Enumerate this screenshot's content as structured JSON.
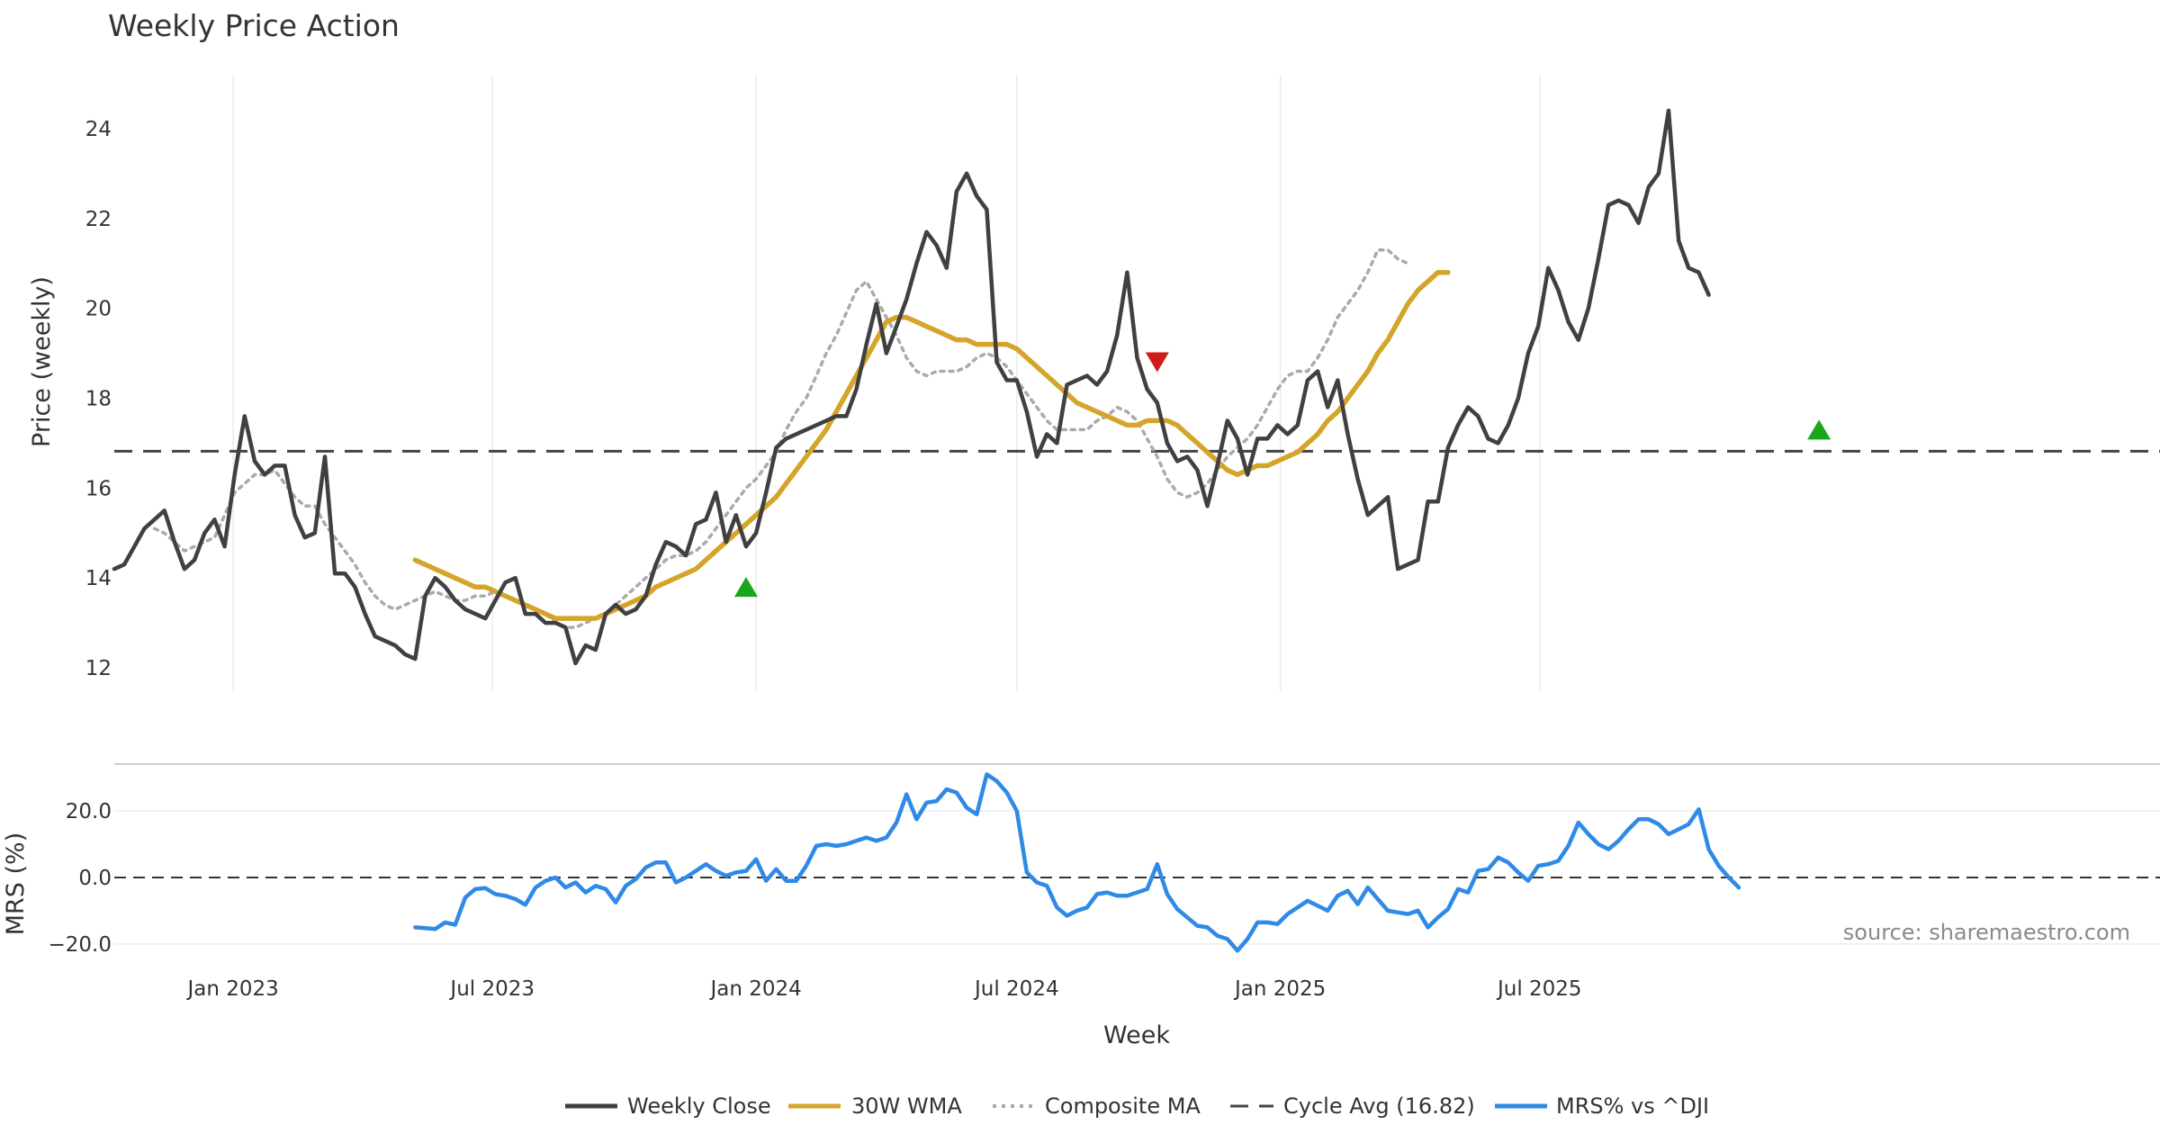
{
  "chart_data": {
    "type": "line",
    "title": "Weekly Price Action",
    "xlabel": "Week",
    "source": "source: sharemaestro.com",
    "x_tick_labels": [
      "Jan 2023",
      "Jul 2023",
      "Jan 2024",
      "Jul 2024",
      "Jan 2025",
      "Jul 2025"
    ],
    "x_range": [
      -12,
      192
    ],
    "price_panel": {
      "ylabel": "Price (weekly)",
      "ylim": [
        11.5,
        25.2
      ],
      "yticks": [
        12,
        14,
        16,
        18,
        20,
        22,
        24
      ],
      "ytick_labels": [
        "12",
        "14",
        "16",
        "18",
        "20",
        "22",
        "24"
      ],
      "grid": true
    },
    "mrs_panel": {
      "ylabel": "MRS (%)",
      "ylim": [
        -23,
        33
      ],
      "yticks": [
        -20,
        0,
        20
      ],
      "ytick_labels": [
        "−20.0",
        "0.0",
        "20.0"
      ],
      "zero_line": true
    },
    "legend": {
      "position": "bottom-center",
      "entries": [
        "Weekly Close",
        "30W WMA",
        "Composite MA",
        "Cycle Avg (16.82)",
        "MRS% vs ^DJI"
      ]
    },
    "colors": {
      "close": "#404040",
      "wma": "#d4a52a",
      "composite": "#aaaaaa",
      "cycle": "#444444",
      "mrs": "#2e8ae6",
      "signal_up": "#1aa51a",
      "signal_down": "#d11a1a"
    },
    "cycle_avg": 16.82,
    "series": [
      {
        "name": "Weekly Close",
        "x_start": -12,
        "values": [
          14.2,
          14.3,
          14.7,
          15.1,
          15.3,
          15.5,
          14.8,
          14.2,
          14.4,
          15.0,
          15.3,
          14.7,
          16.3,
          17.6,
          16.6,
          16.3,
          16.5,
          16.5,
          15.4,
          14.9,
          15.0,
          16.7,
          14.1,
          14.1,
          13.8,
          13.2,
          12.7,
          12.6,
          12.5,
          12.3,
          12.2,
          13.6,
          14.0,
          13.8,
          13.5,
          13.3,
          13.2,
          13.1,
          13.5,
          13.9,
          14.0,
          13.2,
          13.2,
          13.0,
          13.0,
          12.9,
          12.1,
          12.5,
          12.4,
          13.2,
          13.4,
          13.2,
          13.3,
          13.6,
          14.3,
          14.8,
          14.7,
          14.5,
          15.2,
          15.3,
          15.9,
          14.8,
          15.4,
          14.7,
          15.0,
          15.9,
          16.9,
          17.1,
          17.2,
          17.3,
          17.4,
          17.5,
          17.6,
          17.6,
          18.2,
          19.2,
          20.1,
          19.0,
          19.6,
          20.2,
          21.0,
          21.7,
          21.4,
          20.9,
          22.6,
          23.0,
          22.5,
          22.2,
          18.8,
          18.4,
          18.4,
          17.7,
          16.7,
          17.2,
          17.0,
          18.3,
          18.4,
          18.5,
          18.3,
          18.6,
          19.4,
          20.8,
          18.9,
          18.2,
          17.9,
          17.0,
          16.6,
          16.7,
          16.4,
          15.6,
          16.5,
          17.5,
          17.1,
          16.3,
          17.1,
          17.1,
          17.4,
          17.2,
          17.4,
          18.4,
          18.6,
          17.8,
          18.4,
          17.2,
          16.2,
          15.4,
          15.6,
          15.8,
          14.2,
          14.3,
          14.4,
          15.7,
          15.7,
          16.9,
          17.4,
          17.8,
          17.6,
          17.1,
          17.0,
          17.4,
          18.0,
          19.0,
          19.6,
          20.9,
          20.4,
          19.7,
          19.3,
          20.0,
          21.1,
          22.3,
          22.4,
          22.3,
          21.9,
          22.7,
          23.0,
          24.4,
          21.5,
          20.9,
          20.8,
          20.3
        ]
      },
      {
        "name": "30W WMA",
        "x_start": 18,
        "values": [
          14.4,
          14.3,
          14.2,
          14.1,
          14.0,
          13.9,
          13.8,
          13.8,
          13.7,
          13.6,
          13.5,
          13.4,
          13.3,
          13.2,
          13.1,
          13.1,
          13.1,
          13.1,
          13.1,
          13.2,
          13.3,
          13.4,
          13.5,
          13.6,
          13.8,
          13.9,
          14.0,
          14.1,
          14.2,
          14.4,
          14.6,
          14.8,
          15.0,
          15.2,
          15.4,
          15.6,
          15.8,
          16.1,
          16.4,
          16.7,
          17.0,
          17.3,
          17.7,
          18.1,
          18.5,
          18.9,
          19.3,
          19.7,
          19.8,
          19.8,
          19.7,
          19.6,
          19.5,
          19.4,
          19.3,
          19.3,
          19.2,
          19.2,
          19.2,
          19.2,
          19.1,
          18.9,
          18.7,
          18.5,
          18.3,
          18.1,
          17.9,
          17.8,
          17.7,
          17.6,
          17.5,
          17.4,
          17.4,
          17.5,
          17.5,
          17.5,
          17.4,
          17.2,
          17.0,
          16.8,
          16.6,
          16.4,
          16.3,
          16.4,
          16.5,
          16.5,
          16.6,
          16.7,
          16.8,
          17.0,
          17.2,
          17.5,
          17.7,
          18.0,
          18.3,
          18.6,
          19.0,
          19.3,
          19.7,
          20.1,
          20.4,
          20.6,
          20.8,
          20.8
        ]
      },
      {
        "name": "Composite MA",
        "x_start": -8,
        "values": [
          15.1,
          15.0,
          14.8,
          14.6,
          14.7,
          14.8,
          14.9,
          15.4,
          15.9,
          16.1,
          16.3,
          16.3,
          16.4,
          16.1,
          15.8,
          15.6,
          15.6,
          15.2,
          14.9,
          14.6,
          14.3,
          13.9,
          13.6,
          13.4,
          13.3,
          13.4,
          13.5,
          13.6,
          13.7,
          13.6,
          13.5,
          13.5,
          13.6,
          13.6,
          13.7,
          13.6,
          13.5,
          13.4,
          13.3,
          13.2,
          13.0,
          12.9,
          12.9,
          13.0,
          13.1,
          13.2,
          13.4,
          13.6,
          13.8,
          14.0,
          14.2,
          14.4,
          14.5,
          14.5,
          14.6,
          14.8,
          15.1,
          15.4,
          15.7,
          16.0,
          16.2,
          16.5,
          16.8,
          17.3,
          17.7,
          18.0,
          18.5,
          19.0,
          19.4,
          19.9,
          20.4,
          20.6,
          20.2,
          19.8,
          19.4,
          18.9,
          18.6,
          18.5,
          18.6,
          18.6,
          18.6,
          18.7,
          18.9,
          19.0,
          18.9,
          18.7,
          18.4,
          18.1,
          17.8,
          17.5,
          17.3,
          17.3,
          17.3,
          17.3,
          17.5,
          17.6,
          17.8,
          17.7,
          17.5,
          17.1,
          16.7,
          16.2,
          15.9,
          15.8,
          15.9,
          16.1,
          16.4,
          16.7,
          16.9,
          17.1,
          17.4,
          17.8,
          18.2,
          18.5,
          18.6,
          18.6,
          18.9,
          19.3,
          19.8,
          20.1,
          20.4,
          20.8,
          21.3,
          21.3,
          21.1,
          21.0
        ]
      },
      {
        "name": "MRS% vs ^DJI",
        "x_start": 18,
        "values": [
          -15.0,
          -15.2,
          -15.5,
          -13.5,
          -14.2,
          -6.0,
          -3.5,
          -3.2,
          -5.0,
          -5.5,
          -6.5,
          -8.2,
          -3.0,
          -1.0,
          0.0,
          -3.0,
          -1.5,
          -4.5,
          -2.5,
          -3.5,
          -7.5,
          -2.5,
          -0.5,
          3.0,
          4.5,
          4.5,
          -1.5,
          0.0,
          2.0,
          4.0,
          2.0,
          0.5,
          1.5,
          2.0,
          5.5,
          -1.0,
          2.5,
          -1.0,
          -1.0,
          3.5,
          9.5,
          10.0,
          9.5,
          10.0,
          11.0,
          12.0,
          11.0,
          12.0,
          16.5,
          25.0,
          17.5,
          22.5,
          23.0,
          26.5,
          25.5,
          21.0,
          19.0,
          31.0,
          29.0,
          25.5,
          20.0,
          1.5,
          -1.5,
          -2.5,
          -9.0,
          -11.5,
          -10.0,
          -9.0,
          -5.0,
          -4.5,
          -5.5,
          -5.5,
          -4.5,
          -3.5,
          4.0,
          -5.0,
          -9.5,
          -12.0,
          -14.5,
          -15.0,
          -17.5,
          -18.5,
          -22.0,
          -18.5,
          -13.5,
          -13.5,
          -14.0,
          -11.0,
          -9.0,
          -7.0,
          -8.5,
          -10.0,
          -5.5,
          -4.0,
          -8.0,
          -3.0,
          -6.5,
          -10.0,
          -10.5,
          -11.0,
          -10.0,
          -15.0,
          -12.0,
          -9.5,
          -3.5,
          -4.5,
          2.0,
          2.5,
          6.0,
          4.5,
          1.5,
          -1.0,
          3.5,
          4.0,
          5.0,
          9.5,
          16.5,
          13.0,
          10.0,
          8.5,
          11.0,
          14.5,
          17.5,
          17.5,
          16.0,
          13.0,
          14.5,
          16.0,
          20.5,
          8.5,
          3.5,
          0.0,
          -3.0
        ]
      }
    ],
    "signals": [
      {
        "type": "buy",
        "x": 51,
        "y": 13.8
      },
      {
        "type": "sell",
        "x": 92,
        "y": 18.8
      },
      {
        "type": "buy",
        "x": 158,
        "y": 17.3
      }
    ]
  }
}
